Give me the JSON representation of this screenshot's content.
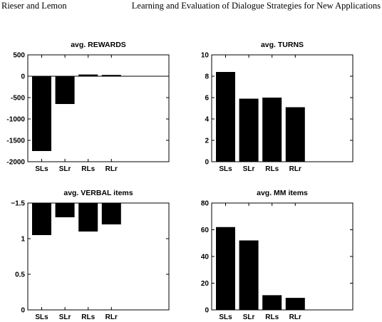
{
  "header": {
    "left": "Rieser and Lemon",
    "right": "Learning and Evaluation of Dialogue Strategies for New Applications"
  },
  "chart_data": [
    {
      "type": "bar",
      "title": "avg. REWARDS",
      "categories": [
        "SLs",
        "SLr",
        "RLs",
        "RLr"
      ],
      "values": [
        -1750,
        -650,
        40,
        30
      ],
      "ylim": [
        -2000,
        500
      ],
      "yticks": [
        "500",
        "0",
        "-500",
        "-1000",
        "-1500",
        "-2000"
      ],
      "ytick_values": [
        500,
        0,
        -500,
        -1000,
        -1500,
        -2000
      ],
      "reverse_y": false,
      "zero_line": true
    },
    {
      "type": "bar",
      "title": "avg. TURNS",
      "categories": [
        "SLs",
        "SLr",
        "RLs",
        "RLr"
      ],
      "values": [
        8.4,
        5.9,
        6.0,
        5.1
      ],
      "ylim": [
        0,
        10
      ],
      "yticks": [
        "10",
        "8",
        "6",
        "4",
        "2",
        "0"
      ],
      "ytick_values": [
        10,
        8,
        6,
        4,
        2,
        0
      ],
      "reverse_y": false,
      "zero_line": false
    },
    {
      "type": "bar",
      "title": "avg. VERBAL items",
      "categories": [
        "SLs",
        "SLr",
        "RLs",
        "RLr"
      ],
      "values": [
        -1.05,
        -1.3,
        -1.1,
        -1.2
      ],
      "ylim": [
        -1.5,
        0
      ],
      "yticks": [
        "−1.5",
        "1",
        "0.5",
        "0"
      ],
      "ytick_values": [
        -1.5,
        -1.0,
        -0.5,
        0
      ],
      "reverse_y": true,
      "zero_line": false
    },
    {
      "type": "bar",
      "title": "avg. MM items",
      "categories": [
        "SLs",
        "SLr",
        "RLs",
        "RLr"
      ],
      "values": [
        62,
        52,
        11,
        9
      ],
      "ylim": [
        0,
        80
      ],
      "yticks": [
        "80",
        "60",
        "40",
        "20",
        "0"
      ],
      "ytick_values": [
        80,
        60,
        40,
        20,
        0
      ],
      "reverse_y": false,
      "zero_line": false
    }
  ]
}
